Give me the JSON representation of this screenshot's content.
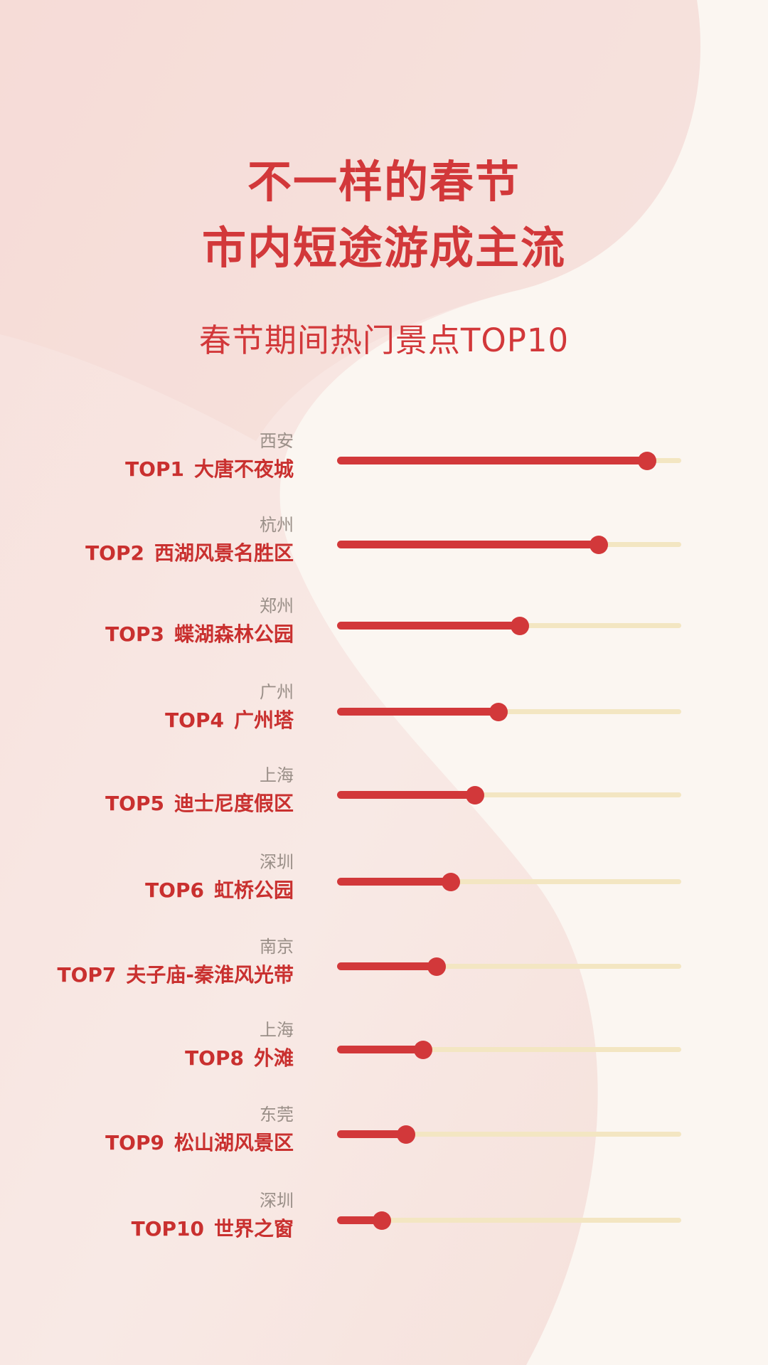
{
  "title_line1": "不一样的春节",
  "title_line2": "市内短途游成主流",
  "subtitle": "春节期间热门景点TOP10",
  "colors": {
    "accent": "#d2383a",
    "track": "#f3e6c2",
    "city_text": "#9a8f88",
    "background": "#fbf6f1"
  },
  "chart_data": {
    "type": "bar",
    "title": "春节期间热门景点TOP10",
    "categories": [
      "TOP1 大唐不夜城",
      "TOP2 西湖风景名胜区",
      "TOP3 蝶湖森林公园",
      "TOP4 广州塔",
      "TOP5 迪士尼度假区",
      "TOP6 虹桥公园",
      "TOP7 夫子庙-秦淮风光带",
      "TOP8 外滩",
      "TOP9 松山湖风景区",
      "TOP10 世界之窗"
    ],
    "values": [
      0.9,
      0.76,
      0.53,
      0.47,
      0.4,
      0.33,
      0.29,
      0.25,
      0.2,
      0.13
    ],
    "ylim": [
      0,
      1
    ],
    "items": [
      {
        "rank": "TOP1",
        "name": "大唐不夜城",
        "city": "西安",
        "value": 0.9
      },
      {
        "rank": "TOP2",
        "name": "西湖风景名胜区",
        "city": "杭州",
        "value": 0.76
      },
      {
        "rank": "TOP3",
        "name": "蝶湖森林公园",
        "city": "郑州",
        "value": 0.53
      },
      {
        "rank": "TOP4",
        "name": "广州塔",
        "city": "广州",
        "value": 0.47
      },
      {
        "rank": "TOP5",
        "name": "迪士尼度假区",
        "city": "上海",
        "value": 0.4
      },
      {
        "rank": "TOP6",
        "name": "虹桥公园",
        "city": "深圳",
        "value": 0.33
      },
      {
        "rank": "TOP7",
        "name": "夫子庙-秦淮风光带",
        "city": "南京",
        "value": 0.29
      },
      {
        "rank": "TOP8",
        "name": "外滩",
        "city": "上海",
        "value": 0.25
      },
      {
        "rank": "TOP9",
        "name": "松山湖风景区",
        "city": "东莞",
        "value": 0.2
      },
      {
        "rank": "TOP10",
        "name": "世界之窗",
        "city": "深圳",
        "value": 0.13
      }
    ]
  }
}
